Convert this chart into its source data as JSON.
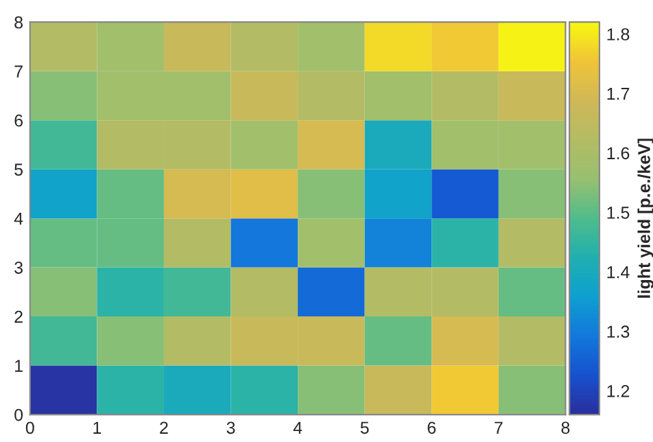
{
  "chart_data": {
    "type": "heatmap",
    "clabel": "light yield [p.e./keV]",
    "xlim": [
      0,
      8
    ],
    "xticks": [
      0,
      1,
      2,
      3,
      4,
      5,
      6,
      7,
      8
    ],
    "ylim": [
      0,
      8
    ],
    "yticks": [
      0,
      1,
      2,
      3,
      4,
      5,
      6,
      7,
      8
    ],
    "clim": [
      1.16,
      1.82
    ],
    "cticks": [
      1.2,
      1.3,
      1.4,
      1.5,
      1.6,
      1.7,
      1.8
    ],
    "cells": [
      [
        1.62,
        1.58,
        1.67,
        1.62,
        1.58,
        1.78,
        1.76,
        1.81
      ],
      [
        1.54,
        1.58,
        1.58,
        1.67,
        1.62,
        1.58,
        1.62,
        1.67
      ],
      [
        1.47,
        1.62,
        1.62,
        1.58,
        1.7,
        1.4,
        1.58,
        1.58
      ],
      [
        1.37,
        1.51,
        1.7,
        1.72,
        1.54,
        1.37,
        1.24,
        1.54
      ],
      [
        1.51,
        1.51,
        1.62,
        1.29,
        1.58,
        1.31,
        1.44,
        1.62
      ],
      [
        1.54,
        1.44,
        1.47,
        1.62,
        1.27,
        1.62,
        1.62,
        1.51
      ],
      [
        1.47,
        1.54,
        1.62,
        1.67,
        1.67,
        1.51,
        1.7,
        1.62
      ],
      [
        1.17,
        1.44,
        1.4,
        1.44,
        1.54,
        1.67,
        1.76,
        1.54
      ]
    ]
  }
}
